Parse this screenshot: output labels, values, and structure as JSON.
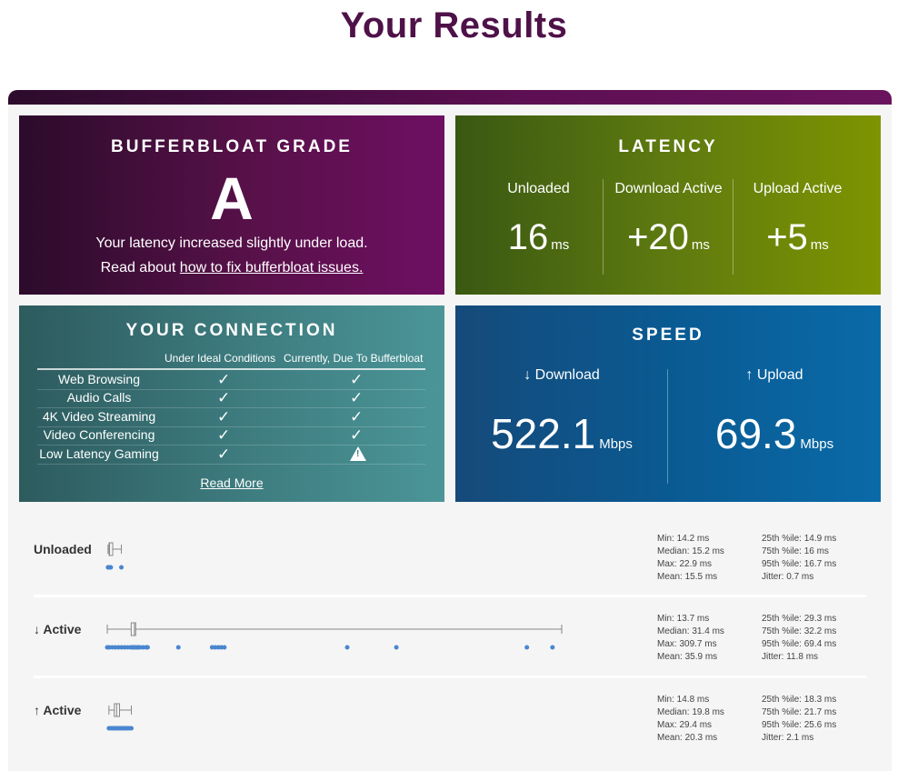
{
  "page": {
    "title": "Your Results"
  },
  "grade": {
    "heading": "BUFFERBLOAT GRADE",
    "letter": "A",
    "line1": "Your latency increased slightly under load.",
    "line2_prefix": "Read about ",
    "line2_link": "how to fix bufferbloat issues."
  },
  "latency": {
    "heading": "LATENCY",
    "columns": [
      {
        "label": "Unloaded",
        "value": "16",
        "unit": "ms"
      },
      {
        "label": "Download Active",
        "value": "+20",
        "unit": "ms"
      },
      {
        "label": "Upload Active",
        "value": "+5",
        "unit": "ms"
      }
    ]
  },
  "connection": {
    "heading": "YOUR CONNECTION",
    "col1": "Under Ideal Conditions",
    "col2": "Currently, Due To Bufferbloat",
    "rows": [
      {
        "name": "Web Browsing",
        "ideal": "check",
        "current": "check"
      },
      {
        "name": "Audio Calls",
        "ideal": "check",
        "current": "check"
      },
      {
        "name": "4K Video Streaming",
        "ideal": "check",
        "current": "check"
      },
      {
        "name": "Video Conferencing",
        "ideal": "check",
        "current": "check"
      },
      {
        "name": "Low Latency Gaming",
        "ideal": "check",
        "current": "warning"
      }
    ],
    "read_more": "Read More"
  },
  "speed": {
    "heading": "SPEED",
    "download": {
      "label": "↓ Download",
      "value": "522.1",
      "unit": "Mbps"
    },
    "upload": {
      "label": "↑ Upload",
      "value": "69.3",
      "unit": "Mbps"
    }
  },
  "latency_details": [
    {
      "label": "Unloaded",
      "min": 14.2,
      "q1": 14.9,
      "median": 15.2,
      "q3": 16,
      "max": 22.9,
      "samples": [
        14.2,
        14.4,
        14.6,
        14.8,
        15.0,
        15.2,
        15.4,
        15.6,
        16.0,
        22.9
      ],
      "stats_left": [
        "Min: 14.2 ms",
        "Median: 15.2 ms",
        "Max: 22.9 ms",
        "Mean: 15.5 ms"
      ],
      "stats_right": [
        "25th %ile: 14.9 ms",
        "75th %ile: 16 ms",
        "95th %ile: 16.7 ms",
        "Jitter: 0.7 ms"
      ]
    },
    {
      "label": "↓ Active",
      "min": 13.7,
      "q1": 29.3,
      "median": 31.4,
      "q3": 32.2,
      "max": 309.7,
      "samples": [
        13.7,
        15,
        17,
        19,
        21,
        23,
        25,
        27,
        29,
        30,
        31,
        32,
        33,
        34,
        35,
        37,
        39,
        40,
        60,
        82,
        84,
        86,
        88,
        90,
        170,
        202,
        287,
        303.7
      ],
      "stats_left": [
        "Min: 13.7 ms",
        "Median: 31.4 ms",
        "Max: 309.7 ms",
        "Mean: 35.9 ms"
      ],
      "stats_right": [
        "25th %ile: 29.3 ms",
        "75th %ile: 32.2 ms",
        "95th %ile: 69.4 ms",
        "Jitter: 11.8 ms"
      ]
    },
    {
      "label": "↑ Active",
      "min": 14.8,
      "q1": 18.3,
      "median": 19.8,
      "q3": 21.7,
      "max": 29.4,
      "samples": [
        14.8,
        16,
        17,
        18,
        19,
        20,
        21,
        22,
        23,
        24,
        25,
        26,
        27,
        28,
        29.4
      ],
      "stats_left": [
        "Min: 14.8 ms",
        "Median: 19.8 ms",
        "Max: 29.4 ms",
        "Mean: 20.3 ms"
      ],
      "stats_right": [
        "25th %ile: 18.3 ms",
        "75th %ile: 21.7 ms",
        "95th %ile: 25.6 ms",
        "Jitter: 2.1 ms"
      ]
    }
  ],
  "colors": {
    "sample_dot": "#4a86d0",
    "box_stroke": "#888888"
  }
}
